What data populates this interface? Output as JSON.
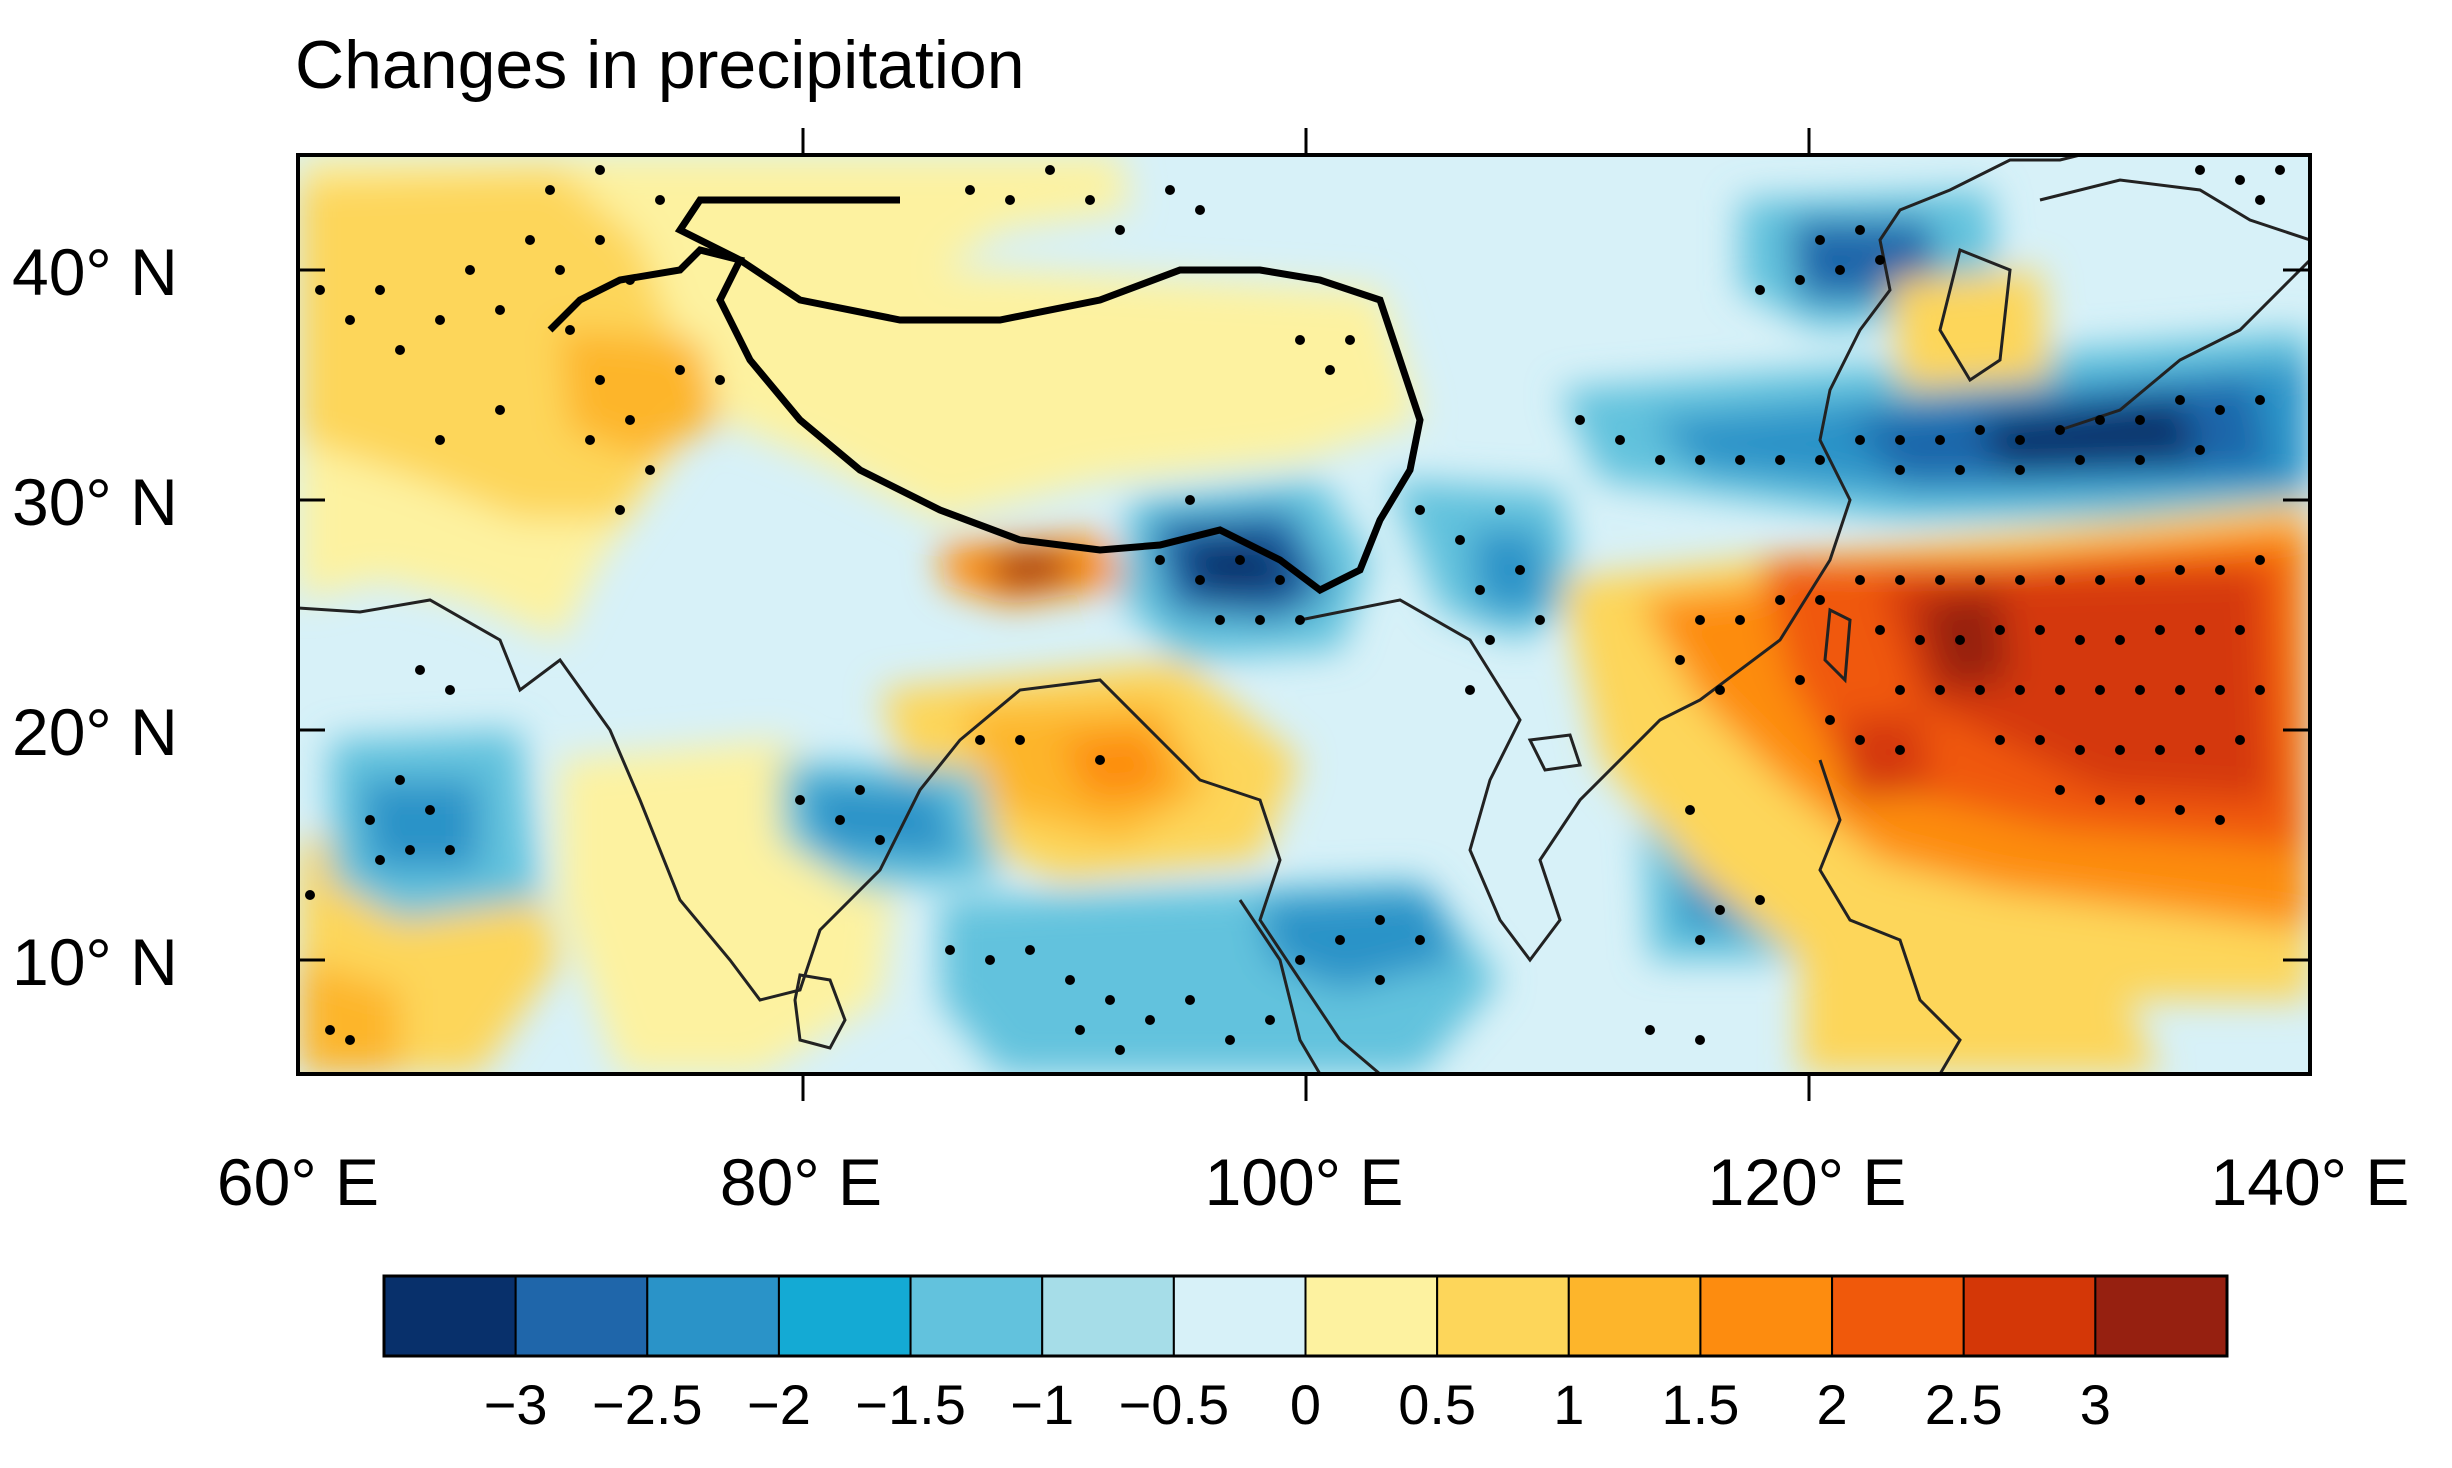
{
  "title": "Changes in precipitation",
  "map": {
    "region": "South and East Asia including the Tibetan Plateau",
    "lon_range": [
      60,
      140
    ],
    "lat_range": [
      5,
      45
    ],
    "lat_ticks": [
      {
        "value": 40,
        "label": "40° N"
      },
      {
        "value": 30,
        "label": "30° N"
      },
      {
        "value": 20,
        "label": "20° N"
      },
      {
        "value": 10,
        "label": "10° N"
      }
    ],
    "lon_ticks": [
      {
        "value": 60,
        "label": "60° E"
      },
      {
        "value": 80,
        "label": "80° E"
      },
      {
        "value": 100,
        "label": "100° E"
      },
      {
        "value": 120,
        "label": "120° E"
      },
      {
        "value": 140,
        "label": "140° E"
      }
    ],
    "stippling": "significant changes"
  },
  "colorbar": {
    "levels": [
      -3,
      -2.5,
      -2,
      -1.5,
      -1,
      -0.5,
      0,
      0.5,
      1,
      1.5,
      2,
      2.5,
      3
    ],
    "labels": [
      "−3",
      "−2.5",
      "−2",
      "−1.5",
      "−1",
      "−0.5",
      "0",
      "0.5",
      "1",
      "1.5",
      "2",
      "2.5",
      "3"
    ],
    "colors": [
      "#08306b",
      "#1f66aa",
      "#2a93c8",
      "#14aad4",
      "#62c2dd",
      "#a6dde8",
      "#d7f1f8",
      "#fdf2a0",
      "#fdd65a",
      "#fdb52b",
      "#fd8c0f",
      "#f0590b",
      "#d43707",
      "#962010"
    ]
  },
  "chart_data": {
    "type": "heatmap",
    "title": "Changes in precipitation",
    "variable": "precipitation change",
    "x_range": [
      60,
      140
    ],
    "y_range": [
      5,
      45
    ],
    "color_levels": [
      -3,
      -2.5,
      -2,
      -1.5,
      -1,
      -0.5,
      0,
      0.5,
      1,
      1.5,
      2,
      2.5,
      3
    ],
    "features": [
      {
        "name": "NW Pacific / East China Sea wet anomaly",
        "lon": 128,
        "lat": 23,
        "value": 3
      },
      {
        "name": "Southern Philippine Sea wet anomaly",
        "lon": 133,
        "lat": 20,
        "value": 2.5
      },
      {
        "name": "Taiwan / Luzon Strait wet anomaly",
        "lon": 124,
        "lat": 19,
        "value": 2.5
      },
      {
        "name": "East China wet anomaly",
        "lon": 117,
        "lat": 24,
        "value": 1.5
      },
      {
        "name": "Yangtze River / southern Japan dry anomaly",
        "lon": 131,
        "lat": 32,
        "value": -3
      },
      {
        "name": "Korea / Yellow Sea dry anomaly",
        "lon": 124,
        "lat": 33.5,
        "value": -2
      },
      {
        "name": "North China dry anomaly",
        "lon": 122,
        "lat": 40,
        "value": -2
      },
      {
        "name": "SE Tibetan Plateau dry anomaly",
        "lon": 97,
        "lat": 27,
        "value": -3
      },
      {
        "name": "Southern Himalaya wet anomaly",
        "lon": 88.5,
        "lat": 27,
        "value": 3
      },
      {
        "name": "Bangladesh / Bay of Bengal head wet anomaly",
        "lon": 91,
        "lat": 19,
        "value": 2
      },
      {
        "name": "Bay of Bengal dry anomaly",
        "lon": 83,
        "lat": 16,
        "value": -1.5
      },
      {
        "name": "Arabian Sea dry anomaly",
        "lon": 64,
        "lat": 16,
        "value": -1.5
      },
      {
        "name": "Indochina / South China Sea dry anomaly",
        "lon": 99,
        "lat": 12,
        "value": -1
      },
      {
        "name": "Western Pacific dry anomaly",
        "lon": 116,
        "lat": 13,
        "value": -1.5
      },
      {
        "name": "Karakoram / western Himalaya wet anomaly",
        "lon": 74,
        "lat": 35,
        "value": 1.5
      },
      {
        "name": "Sichuan Basin dry anomaly",
        "lon": 107,
        "lat": 28,
        "value": -1
      }
    ]
  }
}
